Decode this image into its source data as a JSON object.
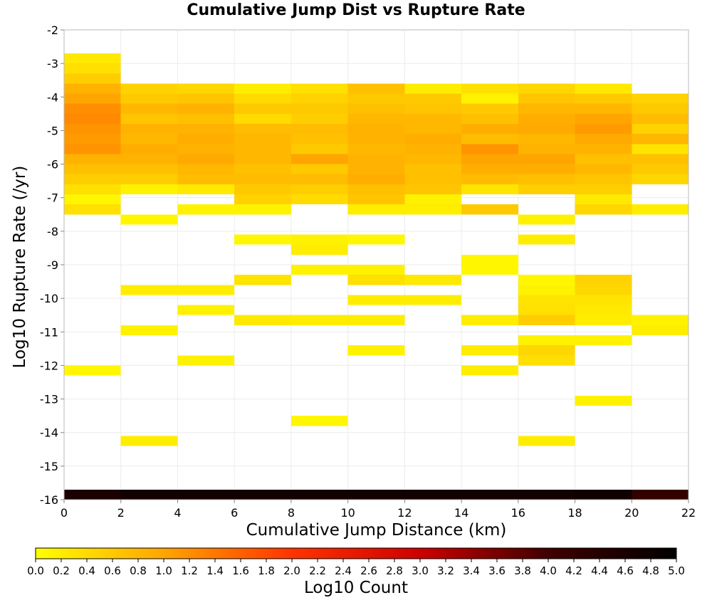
{
  "chart_data": {
    "type": "heatmap",
    "title": "Cumulative Jump Dist vs Rupture Rate",
    "xlabel": "Cumulative Jump Distance (km)",
    "ylabel": "Log10 Rupture Rate (/yr)",
    "xlim": [
      0,
      22
    ],
    "ylim": [
      -16,
      -2
    ],
    "x_ticks": [
      "0",
      "2",
      "4",
      "6",
      "8",
      "10",
      "12",
      "14",
      "16",
      "18",
      "20",
      "22"
    ],
    "y_ticks": [
      "-2",
      "-3",
      "-4",
      "-5",
      "-6",
      "-7",
      "-8",
      "-9",
      "-10",
      "-11",
      "-12",
      "-13",
      "-14",
      "-15",
      "-16"
    ],
    "bin_width_x": 2,
    "bin_height_y": 0.3,
    "colorbar": {
      "label": "Log10 Count",
      "range": [
        0,
        5
      ],
      "ticks": [
        "0.0",
        "0.2",
        "0.4",
        "0.6",
        "0.8",
        "1.0",
        "1.2",
        "1.4",
        "1.6",
        "1.8",
        "2.0",
        "2.2",
        "2.4",
        "2.6",
        "2.8",
        "3.0",
        "3.2",
        "3.4",
        "3.6",
        "3.8",
        "4.0",
        "4.2",
        "4.4",
        "4.6",
        "4.8",
        "5.0"
      ],
      "colors": [
        "#ffff00",
        "#ffa500",
        "#ff3300",
        "#cc0000",
        "#400000",
        "#000000"
      ]
    },
    "cells": [
      {
        "x0": 0,
        "y0": -3.0,
        "v": 0.25
      },
      {
        "x0": 0,
        "y0": -3.3,
        "v": 0.35
      },
      {
        "x0": 0,
        "y0": -3.6,
        "v": 0.55
      },
      {
        "x0": 0,
        "y0": -3.9,
        "v": 0.85
      },
      {
        "x0": 0,
        "y0": -4.2,
        "v": 1.0
      },
      {
        "x0": 0,
        "y0": -4.5,
        "v": 1.2
      },
      {
        "x0": 0,
        "y0": -4.8,
        "v": 1.25
      },
      {
        "x0": 0,
        "y0": -5.1,
        "v": 1.15
      },
      {
        "x0": 0,
        "y0": -5.4,
        "v": 1.1
      },
      {
        "x0": 0,
        "y0": -5.7,
        "v": 1.15
      },
      {
        "x0": 0,
        "y0": -6.0,
        "v": 0.85
      },
      {
        "x0": 0,
        "y0": -6.3,
        "v": 0.7
      },
      {
        "x0": 0,
        "y0": -6.6,
        "v": 0.55
      },
      {
        "x0": 0,
        "y0": -6.9,
        "v": 0.35
      },
      {
        "x0": 0,
        "y0": -7.2,
        "v": 0.1
      },
      {
        "x0": 0,
        "y0": -7.5,
        "v": 0.35
      },
      {
        "x0": 0,
        "y0": -12.3,
        "v": 0.1
      },
      {
        "x0": 2,
        "y0": -3.9,
        "v": 0.5
      },
      {
        "x0": 2,
        "y0": -4.2,
        "v": 0.6
      },
      {
        "x0": 2,
        "y0": -4.5,
        "v": 0.8
      },
      {
        "x0": 2,
        "y0": -4.8,
        "v": 0.65
      },
      {
        "x0": 2,
        "y0": -5.1,
        "v": 0.85
      },
      {
        "x0": 2,
        "y0": -5.4,
        "v": 0.8
      },
      {
        "x0": 2,
        "y0": -5.7,
        "v": 0.9
      },
      {
        "x0": 2,
        "y0": -6.0,
        "v": 0.85
      },
      {
        "x0": 2,
        "y0": -6.3,
        "v": 0.7
      },
      {
        "x0": 2,
        "y0": -6.6,
        "v": 0.55
      },
      {
        "x0": 2,
        "y0": -6.9,
        "v": 0.15
      },
      {
        "x0": 2,
        "y0": -7.8,
        "v": 0.1
      },
      {
        "x0": 2,
        "y0": -9.9,
        "v": 0.2
      },
      {
        "x0": 2,
        "y0": -11.1,
        "v": 0.15
      },
      {
        "x0": 2,
        "y0": -14.4,
        "v": 0.2
      },
      {
        "x0": 4,
        "y0": -3.9,
        "v": 0.45
      },
      {
        "x0": 4,
        "y0": -4.2,
        "v": 0.65
      },
      {
        "x0": 4,
        "y0": -4.5,
        "v": 0.85
      },
      {
        "x0": 4,
        "y0": -4.8,
        "v": 0.7
      },
      {
        "x0": 4,
        "y0": -5.1,
        "v": 0.85
      },
      {
        "x0": 4,
        "y0": -5.4,
        "v": 0.9
      },
      {
        "x0": 4,
        "y0": -5.7,
        "v": 0.85
      },
      {
        "x0": 4,
        "y0": -6.0,
        "v": 0.95
      },
      {
        "x0": 4,
        "y0": -6.3,
        "v": 0.8
      },
      {
        "x0": 4,
        "y0": -6.6,
        "v": 0.75
      },
      {
        "x0": 4,
        "y0": -6.9,
        "v": 0.25
      },
      {
        "x0": 4,
        "y0": -7.5,
        "v": 0.15
      },
      {
        "x0": 4,
        "y0": -9.9,
        "v": 0.2
      },
      {
        "x0": 4,
        "y0": -10.5,
        "v": 0.15
      },
      {
        "x0": 4,
        "y0": -12.0,
        "v": 0.15
      },
      {
        "x0": 6,
        "y0": -3.9,
        "v": 0.2
      },
      {
        "x0": 6,
        "y0": -4.2,
        "v": 0.4
      },
      {
        "x0": 6,
        "y0": -4.5,
        "v": 0.6
      },
      {
        "x0": 6,
        "y0": -4.8,
        "v": 0.4
      },
      {
        "x0": 6,
        "y0": -5.1,
        "v": 0.75
      },
      {
        "x0": 6,
        "y0": -5.4,
        "v": 0.8
      },
      {
        "x0": 6,
        "y0": -5.7,
        "v": 0.8
      },
      {
        "x0": 6,
        "y0": -6.0,
        "v": 0.8
      },
      {
        "x0": 6,
        "y0": -6.3,
        "v": 0.7
      },
      {
        "x0": 6,
        "y0": -6.6,
        "v": 0.75
      },
      {
        "x0": 6,
        "y0": -6.9,
        "v": 0.6
      },
      {
        "x0": 6,
        "y0": -7.2,
        "v": 0.5
      },
      {
        "x0": 6,
        "y0": -7.5,
        "v": 0.15
      },
      {
        "x0": 6,
        "y0": -8.4,
        "v": 0.1
      },
      {
        "x0": 6,
        "y0": -9.6,
        "v": 0.3
      },
      {
        "x0": 6,
        "y0": -10.8,
        "v": 0.25
      },
      {
        "x0": 8,
        "y0": -3.9,
        "v": 0.35
      },
      {
        "x0": 8,
        "y0": -4.2,
        "v": 0.5
      },
      {
        "x0": 8,
        "y0": -4.5,
        "v": 0.6
      },
      {
        "x0": 8,
        "y0": -4.8,
        "v": 0.55
      },
      {
        "x0": 8,
        "y0": -5.1,
        "v": 0.75
      },
      {
        "x0": 8,
        "y0": -5.4,
        "v": 0.7
      },
      {
        "x0": 8,
        "y0": -5.7,
        "v": 0.6
      },
      {
        "x0": 8,
        "y0": -6.0,
        "v": 1.0
      },
      {
        "x0": 8,
        "y0": -6.3,
        "v": 0.6
      },
      {
        "x0": 8,
        "y0": -6.6,
        "v": 0.75
      },
      {
        "x0": 8,
        "y0": -6.9,
        "v": 0.55
      },
      {
        "x0": 8,
        "y0": -7.2,
        "v": 0.4
      },
      {
        "x0": 8,
        "y0": -8.4,
        "v": 0.15
      },
      {
        "x0": 8,
        "y0": -8.7,
        "v": 0.2
      },
      {
        "x0": 8,
        "y0": -9.3,
        "v": 0.15
      },
      {
        "x0": 8,
        "y0": -10.8,
        "v": 0.2
      },
      {
        "x0": 8,
        "y0": -13.8,
        "v": 0.1
      },
      {
        "x0": 10,
        "y0": -3.9,
        "v": 0.7
      },
      {
        "x0": 10,
        "y0": -4.2,
        "v": 0.6
      },
      {
        "x0": 10,
        "y0": -4.5,
        "v": 0.7
      },
      {
        "x0": 10,
        "y0": -4.8,
        "v": 0.8
      },
      {
        "x0": 10,
        "y0": -5.1,
        "v": 0.85
      },
      {
        "x0": 10,
        "y0": -5.4,
        "v": 0.85
      },
      {
        "x0": 10,
        "y0": -5.7,
        "v": 0.8
      },
      {
        "x0": 10,
        "y0": -6.0,
        "v": 0.85
      },
      {
        "x0": 10,
        "y0": -6.3,
        "v": 0.85
      },
      {
        "x0": 10,
        "y0": -6.6,
        "v": 0.9
      },
      {
        "x0": 10,
        "y0": -6.9,
        "v": 0.7
      },
      {
        "x0": 10,
        "y0": -7.2,
        "v": 0.65
      },
      {
        "x0": 10,
        "y0": -7.5,
        "v": 0.2
      },
      {
        "x0": 10,
        "y0": -8.4,
        "v": 0.1
      },
      {
        "x0": 10,
        "y0": -9.3,
        "v": 0.15
      },
      {
        "x0": 10,
        "y0": -9.6,
        "v": 0.35
      },
      {
        "x0": 10,
        "y0": -10.2,
        "v": 0.2
      },
      {
        "x0": 10,
        "y0": -10.8,
        "v": 0.2
      },
      {
        "x0": 10,
        "y0": -11.7,
        "v": 0.15
      },
      {
        "x0": 12,
        "y0": -3.9,
        "v": 0.2
      },
      {
        "x0": 12,
        "y0": -4.2,
        "v": 0.6
      },
      {
        "x0": 12,
        "y0": -4.5,
        "v": 0.65
      },
      {
        "x0": 12,
        "y0": -4.8,
        "v": 0.8
      },
      {
        "x0": 12,
        "y0": -5.1,
        "v": 0.8
      },
      {
        "x0": 12,
        "y0": -5.4,
        "v": 0.9
      },
      {
        "x0": 12,
        "y0": -5.7,
        "v": 0.85
      },
      {
        "x0": 12,
        "y0": -6.0,
        "v": 0.8
      },
      {
        "x0": 12,
        "y0": -6.3,
        "v": 0.7
      },
      {
        "x0": 12,
        "y0": -6.6,
        "v": 0.7
      },
      {
        "x0": 12,
        "y0": -6.9,
        "v": 0.65
      },
      {
        "x0": 12,
        "y0": -7.2,
        "v": 0.15
      },
      {
        "x0": 12,
        "y0": -7.5,
        "v": 0.2
      },
      {
        "x0": 12,
        "y0": -9.6,
        "v": 0.25
      },
      {
        "x0": 12,
        "y0": -10.2,
        "v": 0.2
      },
      {
        "x0": 14,
        "y0": -3.9,
        "v": 0.35
      },
      {
        "x0": 14,
        "y0": -4.2,
        "v": 0.15
      },
      {
        "x0": 14,
        "y0": -4.5,
        "v": 0.6
      },
      {
        "x0": 14,
        "y0": -4.8,
        "v": 0.7
      },
      {
        "x0": 14,
        "y0": -5.1,
        "v": 0.9
      },
      {
        "x0": 14,
        "y0": -5.4,
        "v": 0.75
      },
      {
        "x0": 14,
        "y0": -5.7,
        "v": 1.15
      },
      {
        "x0": 14,
        "y0": -6.0,
        "v": 1.0
      },
      {
        "x0": 14,
        "y0": -6.3,
        "v": 0.9
      },
      {
        "x0": 14,
        "y0": -6.6,
        "v": 0.75
      },
      {
        "x0": 14,
        "y0": -6.9,
        "v": 0.3
      },
      {
        "x0": 14,
        "y0": -7.5,
        "v": 0.6
      },
      {
        "x0": 14,
        "y0": -9.0,
        "v": 0.1
      },
      {
        "x0": 14,
        "y0": -9.3,
        "v": 0.1
      },
      {
        "x0": 14,
        "y0": -10.8,
        "v": 0.2
      },
      {
        "x0": 14,
        "y0": -11.7,
        "v": 0.2
      },
      {
        "x0": 14,
        "y0": -12.3,
        "v": 0.2
      },
      {
        "x0": 16,
        "y0": -3.9,
        "v": 0.45
      },
      {
        "x0": 16,
        "y0": -4.2,
        "v": 0.65
      },
      {
        "x0": 16,
        "y0": -4.5,
        "v": 0.8
      },
      {
        "x0": 16,
        "y0": -4.8,
        "v": 0.9
      },
      {
        "x0": 16,
        "y0": -5.1,
        "v": 0.95
      },
      {
        "x0": 16,
        "y0": -5.4,
        "v": 0.8
      },
      {
        "x0": 16,
        "y0": -5.7,
        "v": 0.85
      },
      {
        "x0": 16,
        "y0": -6.0,
        "v": 1.0
      },
      {
        "x0": 16,
        "y0": -6.3,
        "v": 0.9
      },
      {
        "x0": 16,
        "y0": -6.6,
        "v": 0.7
      },
      {
        "x0": 16,
        "y0": -6.9,
        "v": 0.55
      },
      {
        "x0": 16,
        "y0": -7.8,
        "v": 0.15
      },
      {
        "x0": 16,
        "y0": -8.4,
        "v": 0.2
      },
      {
        "x0": 16,
        "y0": -9.6,
        "v": 0.1
      },
      {
        "x0": 16,
        "y0": -9.9,
        "v": 0.15
      },
      {
        "x0": 16,
        "y0": -10.2,
        "v": 0.3
      },
      {
        "x0": 16,
        "y0": -10.5,
        "v": 0.35
      },
      {
        "x0": 16,
        "y0": -10.8,
        "v": 0.55
      },
      {
        "x0": 16,
        "y0": -11.4,
        "v": 0.15
      },
      {
        "x0": 16,
        "y0": -11.7,
        "v": 0.45
      },
      {
        "x0": 16,
        "y0": -12.0,
        "v": 0.35
      },
      {
        "x0": 16,
        "y0": -14.4,
        "v": 0.2
      },
      {
        "x0": 18,
        "y0": -3.9,
        "v": 0.25
      },
      {
        "x0": 18,
        "y0": -4.2,
        "v": 0.6
      },
      {
        "x0": 18,
        "y0": -4.5,
        "v": 0.8
      },
      {
        "x0": 18,
        "y0": -4.8,
        "v": 1.0
      },
      {
        "x0": 18,
        "y0": -5.1,
        "v": 1.1
      },
      {
        "x0": 18,
        "y0": -5.4,
        "v": 0.95
      },
      {
        "x0": 18,
        "y0": -5.7,
        "v": 0.85
      },
      {
        "x0": 18,
        "y0": -6.0,
        "v": 0.7
      },
      {
        "x0": 18,
        "y0": -6.3,
        "v": 0.8
      },
      {
        "x0": 18,
        "y0": -6.6,
        "v": 0.65
      },
      {
        "x0": 18,
        "y0": -6.9,
        "v": 0.55
      },
      {
        "x0": 18,
        "y0": -7.2,
        "v": 0.25
      },
      {
        "x0": 18,
        "y0": -7.5,
        "v": 0.45
      },
      {
        "x0": 18,
        "y0": -9.6,
        "v": 0.5
      },
      {
        "x0": 18,
        "y0": -9.9,
        "v": 0.45
      },
      {
        "x0": 18,
        "y0": -10.2,
        "v": 0.3
      },
      {
        "x0": 18,
        "y0": -10.5,
        "v": 0.25
      },
      {
        "x0": 18,
        "y0": -10.8,
        "v": 0.2
      },
      {
        "x0": 18,
        "y0": -11.4,
        "v": 0.15
      },
      {
        "x0": 18,
        "y0": -13.2,
        "v": 0.15
      },
      {
        "x0": 20,
        "y0": -4.2,
        "v": 0.5
      },
      {
        "x0": 20,
        "y0": -4.5,
        "v": 0.6
      },
      {
        "x0": 20,
        "y0": -4.8,
        "v": 0.75
      },
      {
        "x0": 20,
        "y0": -5.1,
        "v": 0.5
      },
      {
        "x0": 20,
        "y0": -5.4,
        "v": 0.8
      },
      {
        "x0": 20,
        "y0": -5.7,
        "v": 0.3
      },
      {
        "x0": 20,
        "y0": -6.0,
        "v": 0.7
      },
      {
        "x0": 20,
        "y0": -6.3,
        "v": 0.6
      },
      {
        "x0": 20,
        "y0": -6.6,
        "v": 0.45
      },
      {
        "x0": 20,
        "y0": -7.5,
        "v": 0.2
      },
      {
        "x0": 20,
        "y0": -10.8,
        "v": 0.15
      },
      {
        "x0": 20,
        "y0": -11.1,
        "v": 0.2
      },
      {
        "x0": 0,
        "y0": -16.0,
        "v": 4.6
      },
      {
        "x0": 2,
        "y0": -16.0,
        "v": 4.7
      },
      {
        "x0": 4,
        "y0": -16.0,
        "v": 4.7
      },
      {
        "x0": 6,
        "y0": -16.0,
        "v": 4.7
      },
      {
        "x0": 8,
        "y0": -16.0,
        "v": 4.7
      },
      {
        "x0": 10,
        "y0": -16.0,
        "v": 4.7
      },
      {
        "x0": 12,
        "y0": -16.0,
        "v": 4.7
      },
      {
        "x0": 14,
        "y0": -16.0,
        "v": 4.7
      },
      {
        "x0": 16,
        "y0": -16.0,
        "v": 4.7
      },
      {
        "x0": 18,
        "y0": -16.0,
        "v": 4.75
      },
      {
        "x0": 20,
        "y0": -16.0,
        "v": 4.2
      }
    ]
  }
}
